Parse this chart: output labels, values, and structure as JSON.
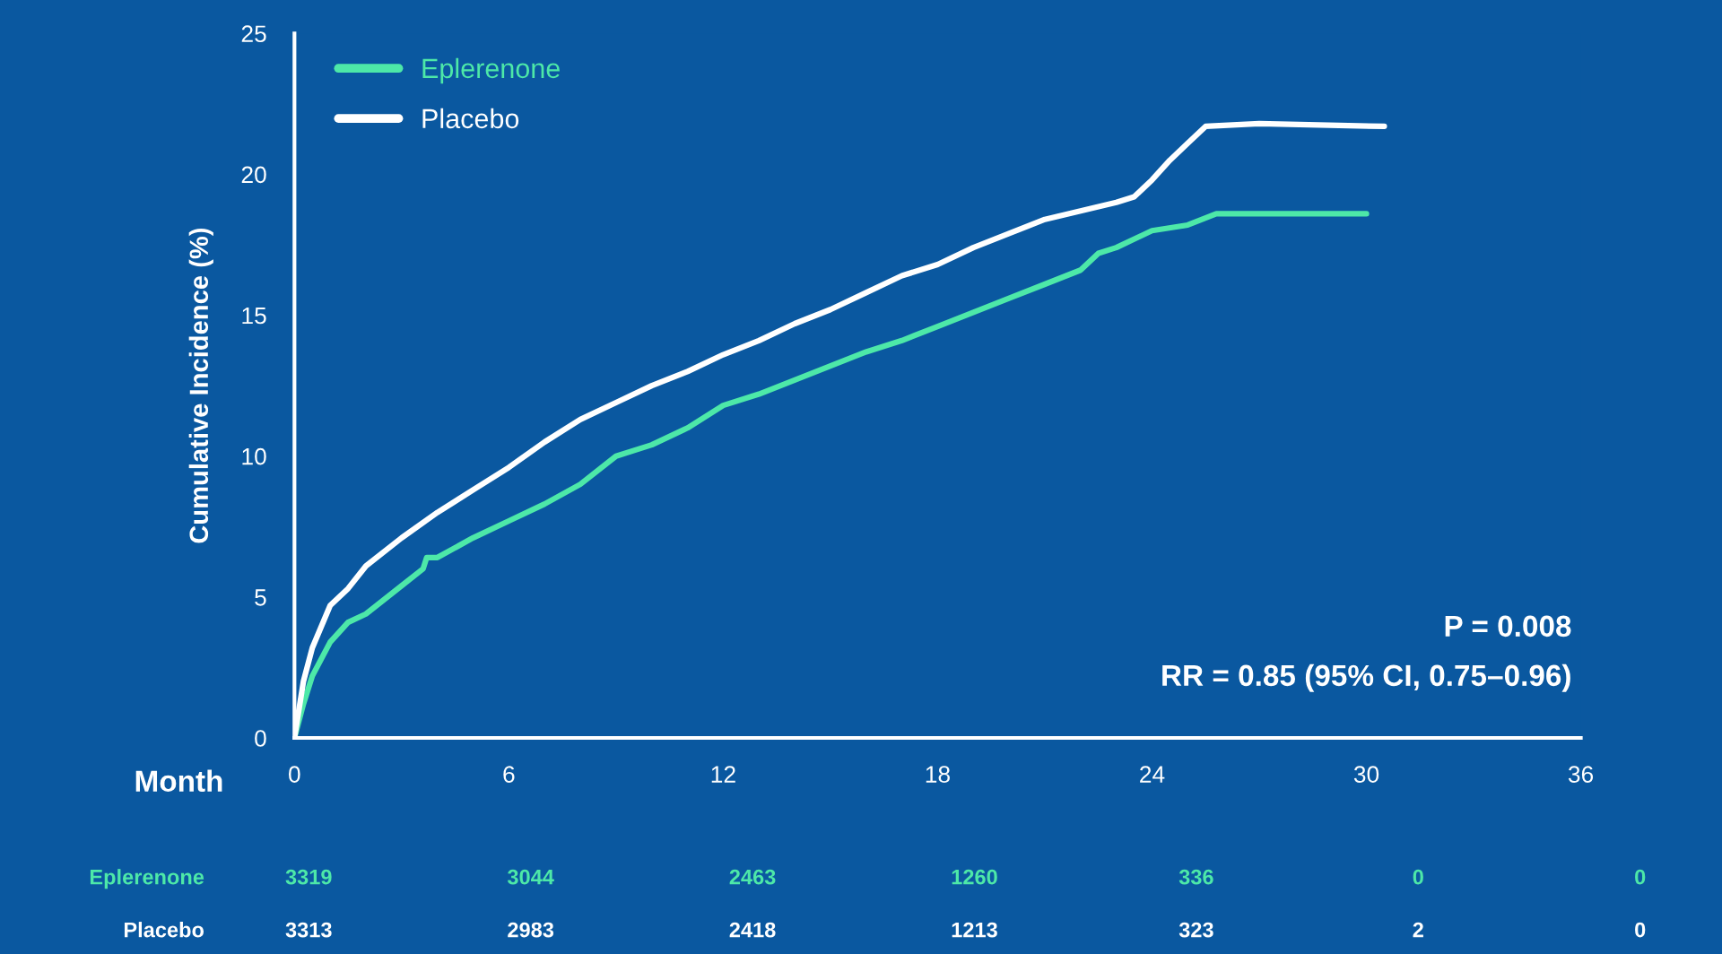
{
  "chart_data": {
    "type": "line",
    "ylabel": "Cumulative Incidence (%)",
    "xlabel": "Month",
    "xlim": [
      0,
      36
    ],
    "xticks": [
      0,
      6,
      12,
      18,
      24,
      30,
      36
    ],
    "ylim": [
      0,
      25
    ],
    "yticks": [
      0,
      5,
      10,
      15,
      20,
      25
    ],
    "grid": false,
    "legend": "top left",
    "marker": "none",
    "line_style": "solid",
    "series": [
      {
        "name": "Eplerenone",
        "color": "#4de8a8",
        "x": [
          0,
          0.25,
          0.5,
          1,
          1.5,
          2,
          3,
          3.6,
          3.7,
          4,
          5,
          6,
          7,
          8,
          9,
          10,
          11,
          12,
          13,
          14,
          15,
          16,
          17,
          18,
          19,
          20,
          21,
          22,
          22.5,
          23,
          24,
          25,
          25.8,
          30
        ],
        "values": [
          0,
          1.2,
          2.2,
          3.4,
          4.1,
          4.4,
          5.4,
          6.0,
          6.4,
          6.4,
          7.1,
          7.7,
          8.3,
          9.0,
          10.0,
          10.4,
          11.0,
          11.8,
          12.2,
          12.7,
          13.2,
          13.7,
          14.1,
          14.6,
          15.1,
          15.6,
          16.1,
          16.6,
          17.2,
          17.4,
          18.0,
          18.2,
          18.6,
          18.6
        ]
      },
      {
        "name": "Placebo",
        "color": "#ffffff",
        "x": [
          0,
          0.25,
          0.5,
          1,
          1.5,
          2,
          3,
          4,
          5,
          6,
          7,
          8,
          9,
          10,
          11,
          12,
          13,
          14,
          15,
          16,
          17,
          18,
          19,
          20,
          21,
          22,
          23,
          23.5,
          24,
          24.5,
          25,
          25.5,
          27,
          30.5
        ],
        "values": [
          0,
          2.0,
          3.2,
          4.7,
          5.3,
          6.1,
          7.1,
          8.0,
          8.8,
          9.6,
          10.5,
          11.3,
          11.9,
          12.5,
          13.0,
          13.6,
          14.1,
          14.7,
          15.2,
          15.8,
          16.4,
          16.8,
          17.4,
          17.9,
          18.4,
          18.7,
          19.0,
          19.2,
          19.8,
          20.5,
          21.1,
          21.7,
          21.8,
          21.7
        ]
      }
    ],
    "annotations": [
      "P = 0.008",
      "RR = 0.85 (95% CI, 0.75–0.96)",
      "Eplerenone",
      "3319",
      "3044",
      "2463",
      "1260",
      "336",
      "0",
      "0",
      "Placebo",
      "3313",
      "2983",
      "2418",
      "1213",
      "323",
      "2",
      "0"
    ]
  }
}
